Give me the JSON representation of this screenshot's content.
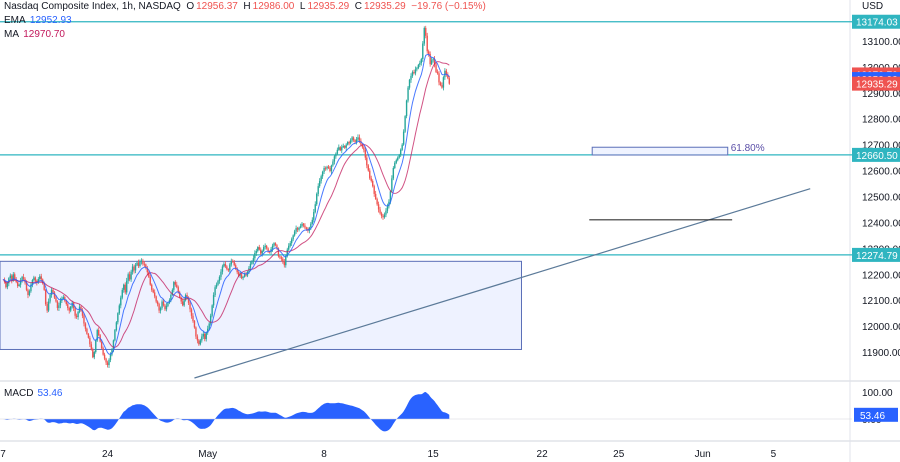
{
  "legend": {
    "symbol": "Nasdaq Composite Index",
    "timeframe": "1h",
    "exchange": "NASDAQ",
    "open_label": "O",
    "open": "12956.37",
    "high_label": "H",
    "high": "12986.00",
    "low_label": "L",
    "low": "12935.29",
    "close_label": "C",
    "close": "12935.29",
    "change": "−19.76 (−0.15%)",
    "ema_label": "EMA",
    "ema_value": "12952.93",
    "ma_label": "MA",
    "ma_value": "12970.70"
  },
  "macd": {
    "label": "MACD",
    "value": "53.46"
  },
  "colors": {
    "up": "#26a69a",
    "down": "#ef5350",
    "ema": "#2962ff",
    "ma": "#c2185b",
    "level": "#2fb5c0",
    "box_fill": "#e8eeff",
    "box_stroke": "#5b6fb8",
    "trend": "#5b7a99",
    "macd_fill": "#2962ff"
  },
  "chart_data": {
    "type": "candlestick",
    "currency": "USD",
    "yaxis": {
      "range": [
        11800,
        13200
      ],
      "ticks": [
        11900,
        12000,
        12100,
        12200,
        12300,
        12400,
        12500,
        12600,
        12700,
        12800,
        12900,
        13000,
        13100
      ],
      "tick_labels": [
        "11900.00",
        "12000.00",
        "12100.00",
        "12200.00",
        "12300.00",
        "12400.00",
        "12500.00",
        "12600.00",
        "12700.00",
        "12800.00",
        "12900.00",
        "13000.00",
        "13100.00"
      ]
    },
    "xaxis": {
      "ticks": [
        {
          "label": "7",
          "t": 0
        },
        {
          "label": "24",
          "t": 71
        },
        {
          "label": "May",
          "t": 139
        },
        {
          "label": "8",
          "t": 218
        },
        {
          "label": "15",
          "t": 292
        },
        {
          "label": "22",
          "t": 366
        },
        {
          "label": "25",
          "t": 418
        },
        {
          "label": "Jun",
          "t": 475
        },
        {
          "label": "5",
          "t": 523
        }
      ],
      "range": [
        -2,
        575
      ]
    },
    "price_badges": [
      {
        "value": 13174.03,
        "label": "13174.03",
        "color": "#2fb5c0"
      },
      {
        "value": 12970.7,
        "label": "12970.70",
        "color": "#ef5350"
      },
      {
        "value": 12952.93,
        "label": "12952.93",
        "color": "#2962ff"
      },
      {
        "value": 12935.29,
        "label": "12935.29",
        "color": "#ef5350"
      },
      {
        "value": 12660.5,
        "label": "12660.50",
        "color": "#2fb5c0"
      },
      {
        "value": 12274.79,
        "label": "12274.79",
        "color": "#2fb5c0"
      }
    ],
    "horizontal_levels": [
      13174.03,
      12660.5,
      12274.79
    ],
    "range_box": {
      "t0": -2,
      "t1": 352,
      "p_top": 12250,
      "p_bottom": 11910
    },
    "fib_box": {
      "t0": 400,
      "t1": 492,
      "p_top": 12690,
      "p_bottom": 12660,
      "label": "61.80%"
    },
    "support_segment": {
      "t0": 398,
      "t1": 495,
      "price": 12410
    },
    "trendline": {
      "t0": 130,
      "p0": 11800,
      "t1": 548,
      "p1": 12530
    },
    "closes": [
      12180,
      12172,
      12150,
      12165,
      12185,
      12195,
      12175,
      12200,
      12180,
      12170,
      12155,
      12160,
      12175,
      12190,
      12182,
      12168,
      12140,
      12120,
      12135,
      12160,
      12178,
      12188,
      12175,
      12168,
      12182,
      12192,
      12180,
      12165,
      12140,
      12085,
      12060,
      12095,
      12120,
      12140,
      12130,
      12110,
      12095,
      12070,
      12080,
      12098,
      12105,
      12112,
      12098,
      12085,
      12070,
      12060,
      12075,
      12090,
      12070,
      12040,
      12035,
      12055,
      12075,
      12060,
      12040,
      12010,
      11990,
      11970,
      11955,
      11930,
      11910,
      11880,
      11900,
      11945,
      11985,
      11965,
      11940,
      11915,
      11890,
      11875,
      11860,
      11850,
      11870,
      11890,
      11910,
      11945,
      11985,
      12015,
      12050,
      12080,
      12110,
      12140,
      12160,
      12130,
      12175,
      12200,
      12180,
      12210,
      12230,
      12215,
      12235,
      12245,
      12232,
      12248,
      12252,
      12240,
      12238,
      12225,
      12208,
      12190,
      12160,
      12140,
      12130,
      12115,
      12095,
      12085,
      12060,
      12070,
      12095,
      12080,
      12065,
      12078,
      12090,
      12100,
      12120,
      12140,
      12170,
      12160,
      12150,
      12130,
      12110,
      12095,
      12080,
      12100,
      12120,
      12110,
      12090,
      12065,
      12040,
      12020,
      11995,
      11960,
      11945,
      11930,
      11945,
      11960,
      11970,
      11950,
      11975,
      11990,
      12010,
      12040,
      12080,
      12120,
      12150,
      12160,
      12175,
      12190,
      12210,
      12230,
      12240,
      12230,
      12220,
      12215,
      12238,
      12250,
      12248,
      12235,
      12222,
      12208,
      12195,
      12200,
      12185,
      12190,
      12200,
      12195,
      12210,
      12225,
      12240,
      12250,
      12262,
      12282,
      12290,
      12305,
      12295,
      12280,
      12290,
      12305,
      12310,
      12300,
      12288,
      12285,
      12298,
      12310,
      12320,
      12312,
      12300,
      12270,
      12265,
      12260,
      12248,
      12235,
      12270,
      12295,
      12310,
      12320,
      12335,
      12350,
      12365,
      12378,
      12372,
      12380,
      12385,
      12395,
      12388,
      12380,
      12375,
      12368,
      12380,
      12395,
      12410,
      12440,
      12470,
      12510,
      12540,
      12560,
      12578,
      12595,
      12610,
      12608,
      12615,
      12610,
      12598,
      12620,
      12635,
      12655,
      12665,
      12680,
      12690,
      12678,
      12690,
      12695,
      12688,
      12700,
      12710,
      12705,
      12716,
      12728,
      12718,
      12710,
      12720,
      12728,
      12715,
      12700,
      12690,
      12680,
      12650,
      12620,
      12600,
      12570,
      12560,
      12540,
      12510,
      12490,
      12470,
      12450,
      12435,
      12425,
      12420,
      12430,
      12445,
      12462,
      12480,
      12520,
      12570,
      12610,
      12630,
      12640,
      12650,
      12660,
      12680,
      12700,
      12750,
      12810,
      12870,
      12920,
      12950,
      12965,
      12980,
      12975,
      12990,
      12995,
      13008,
      13015,
      13030,
      13090,
      13150,
      13120,
      13060,
      13050,
      13010,
      13025,
      13030,
      13010,
      12980,
      12975,
      12940,
      12930,
      12920,
      12960,
      12985,
      12970,
      12956,
      12935
    ]
  }
}
